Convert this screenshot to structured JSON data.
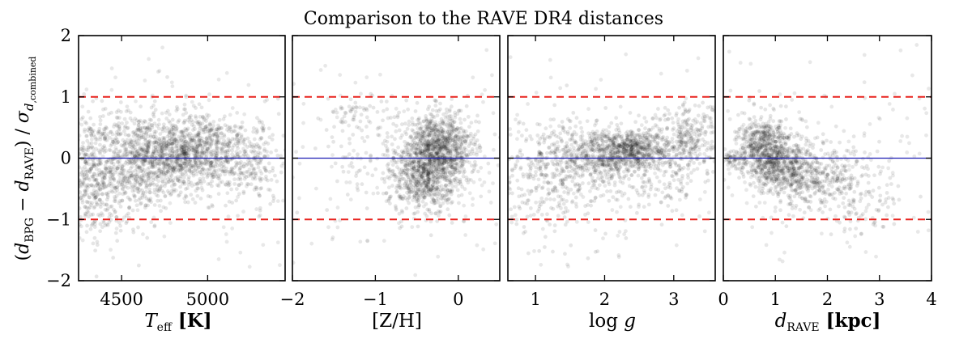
{
  "chart_data": {
    "title": "Comparison to the RAVE DR4 distances",
    "ylabel": "(d_BPG − d_RAVE) / σ_d,combined",
    "ylim": [
      -2,
      2
    ],
    "ytick_labels": [
      "2",
      "1",
      "0",
      "−1",
      "−2"
    ],
    "yticks": [
      2,
      1,
      0,
      -1,
      -2
    ],
    "reference_lines": [
      {
        "y": 1,
        "style": "dashed",
        "color": "#e8231f"
      },
      {
        "y": -1,
        "style": "dashed",
        "color": "#e8231f"
      },
      {
        "y": 0,
        "style": "solid",
        "color": "#1f1fb4"
      }
    ],
    "panels": [
      {
        "type": "scatter",
        "xlabel": "T_eff [K]",
        "xlim": [
          4250,
          5450
        ],
        "xticks": [
          4500,
          5000
        ],
        "xtick_labels": [
          "4500",
          "5000"
        ],
        "density": [
          {
            "x": 4290,
            "y": -0.35,
            "sx": 70,
            "sy": 0.55,
            "n": 300
          },
          {
            "x": 4450,
            "y": -0.25,
            "sx": 110,
            "sy": 0.5,
            "n": 350
          },
          {
            "x": 4600,
            "y": -0.05,
            "sx": 100,
            "sy": 0.4,
            "n": 380
          },
          {
            "x": 4800,
            "y": 0.08,
            "sx": 110,
            "sy": 0.3,
            "n": 600
          },
          {
            "x": 5000,
            "y": 0.12,
            "sx": 110,
            "sy": 0.32,
            "n": 450
          },
          {
            "x": 5250,
            "y": -0.05,
            "sx": 120,
            "sy": 0.35,
            "n": 250
          }
        ]
      },
      {
        "type": "scatter",
        "xlabel": "[Z/H]",
        "xlim": [
          -2.0,
          0.5
        ],
        "xticks": [
          -2,
          -1,
          0
        ],
        "xtick_labels": [
          "−2",
          "−1",
          "0"
        ],
        "density": [
          {
            "x": -0.3,
            "y": 0.0,
            "sx": 0.22,
            "sy": 0.3,
            "n": 900
          },
          {
            "x": -0.45,
            "y": -0.45,
            "sx": 0.18,
            "sy": 0.25,
            "n": 300
          },
          {
            "x": -0.15,
            "y": 0.25,
            "sx": 0.2,
            "sy": 0.25,
            "n": 300
          },
          {
            "x": -1.3,
            "y": 0.75,
            "sx": 0.15,
            "sy": 0.15,
            "n": 35
          },
          {
            "x": -0.9,
            "y": 0.1,
            "sx": 0.4,
            "sy": 0.5,
            "n": 120
          }
        ]
      },
      {
        "type": "scatter",
        "xlabel": "log g",
        "xlim": [
          0.6,
          3.6
        ],
        "xticks": [
          1,
          2,
          3
        ],
        "xtick_labels": [
          "1",
          "2",
          "3"
        ],
        "density": [
          {
            "x": 1.2,
            "y": -0.3,
            "sx": 0.35,
            "sy": 0.45,
            "n": 300
          },
          {
            "x": 1.9,
            "y": 0.05,
            "sx": 0.35,
            "sy": 0.25,
            "n": 500
          },
          {
            "x": 2.4,
            "y": 0.15,
            "sx": 0.25,
            "sy": 0.15,
            "n": 450
          },
          {
            "x": 3.2,
            "y": 0.3,
            "sx": 0.25,
            "sy": 0.3,
            "n": 300
          },
          {
            "x": 2.6,
            "y": -0.2,
            "sx": 0.4,
            "sy": 0.4,
            "n": 200
          }
        ]
      },
      {
        "type": "scatter",
        "xlabel": "d_RAVE [kpc]",
        "xlim": [
          0,
          4
        ],
        "xticks": [
          0,
          1,
          2,
          3,
          4
        ],
        "xtick_labels": [
          "0",
          "1",
          "2",
          "3",
          "4"
        ],
        "density": [
          {
            "x": 0.8,
            "y": 0.15,
            "sx": 0.25,
            "sy": 0.25,
            "n": 600
          },
          {
            "x": 1.2,
            "y": -0.15,
            "sx": 0.3,
            "sy": 0.25,
            "n": 400
          },
          {
            "x": 1.8,
            "y": -0.3,
            "sx": 0.45,
            "sy": 0.3,
            "n": 300
          },
          {
            "x": 2.6,
            "y": -0.55,
            "sx": 0.45,
            "sy": 0.35,
            "n": 130
          },
          {
            "x": 0.25,
            "y": 0.0,
            "sx": 0.12,
            "sy": 0.06,
            "n": 60
          }
        ]
      }
    ],
    "colors": {
      "points": "#000000",
      "dashed": "#e8231f",
      "zero": "#1f1fb4"
    }
  }
}
